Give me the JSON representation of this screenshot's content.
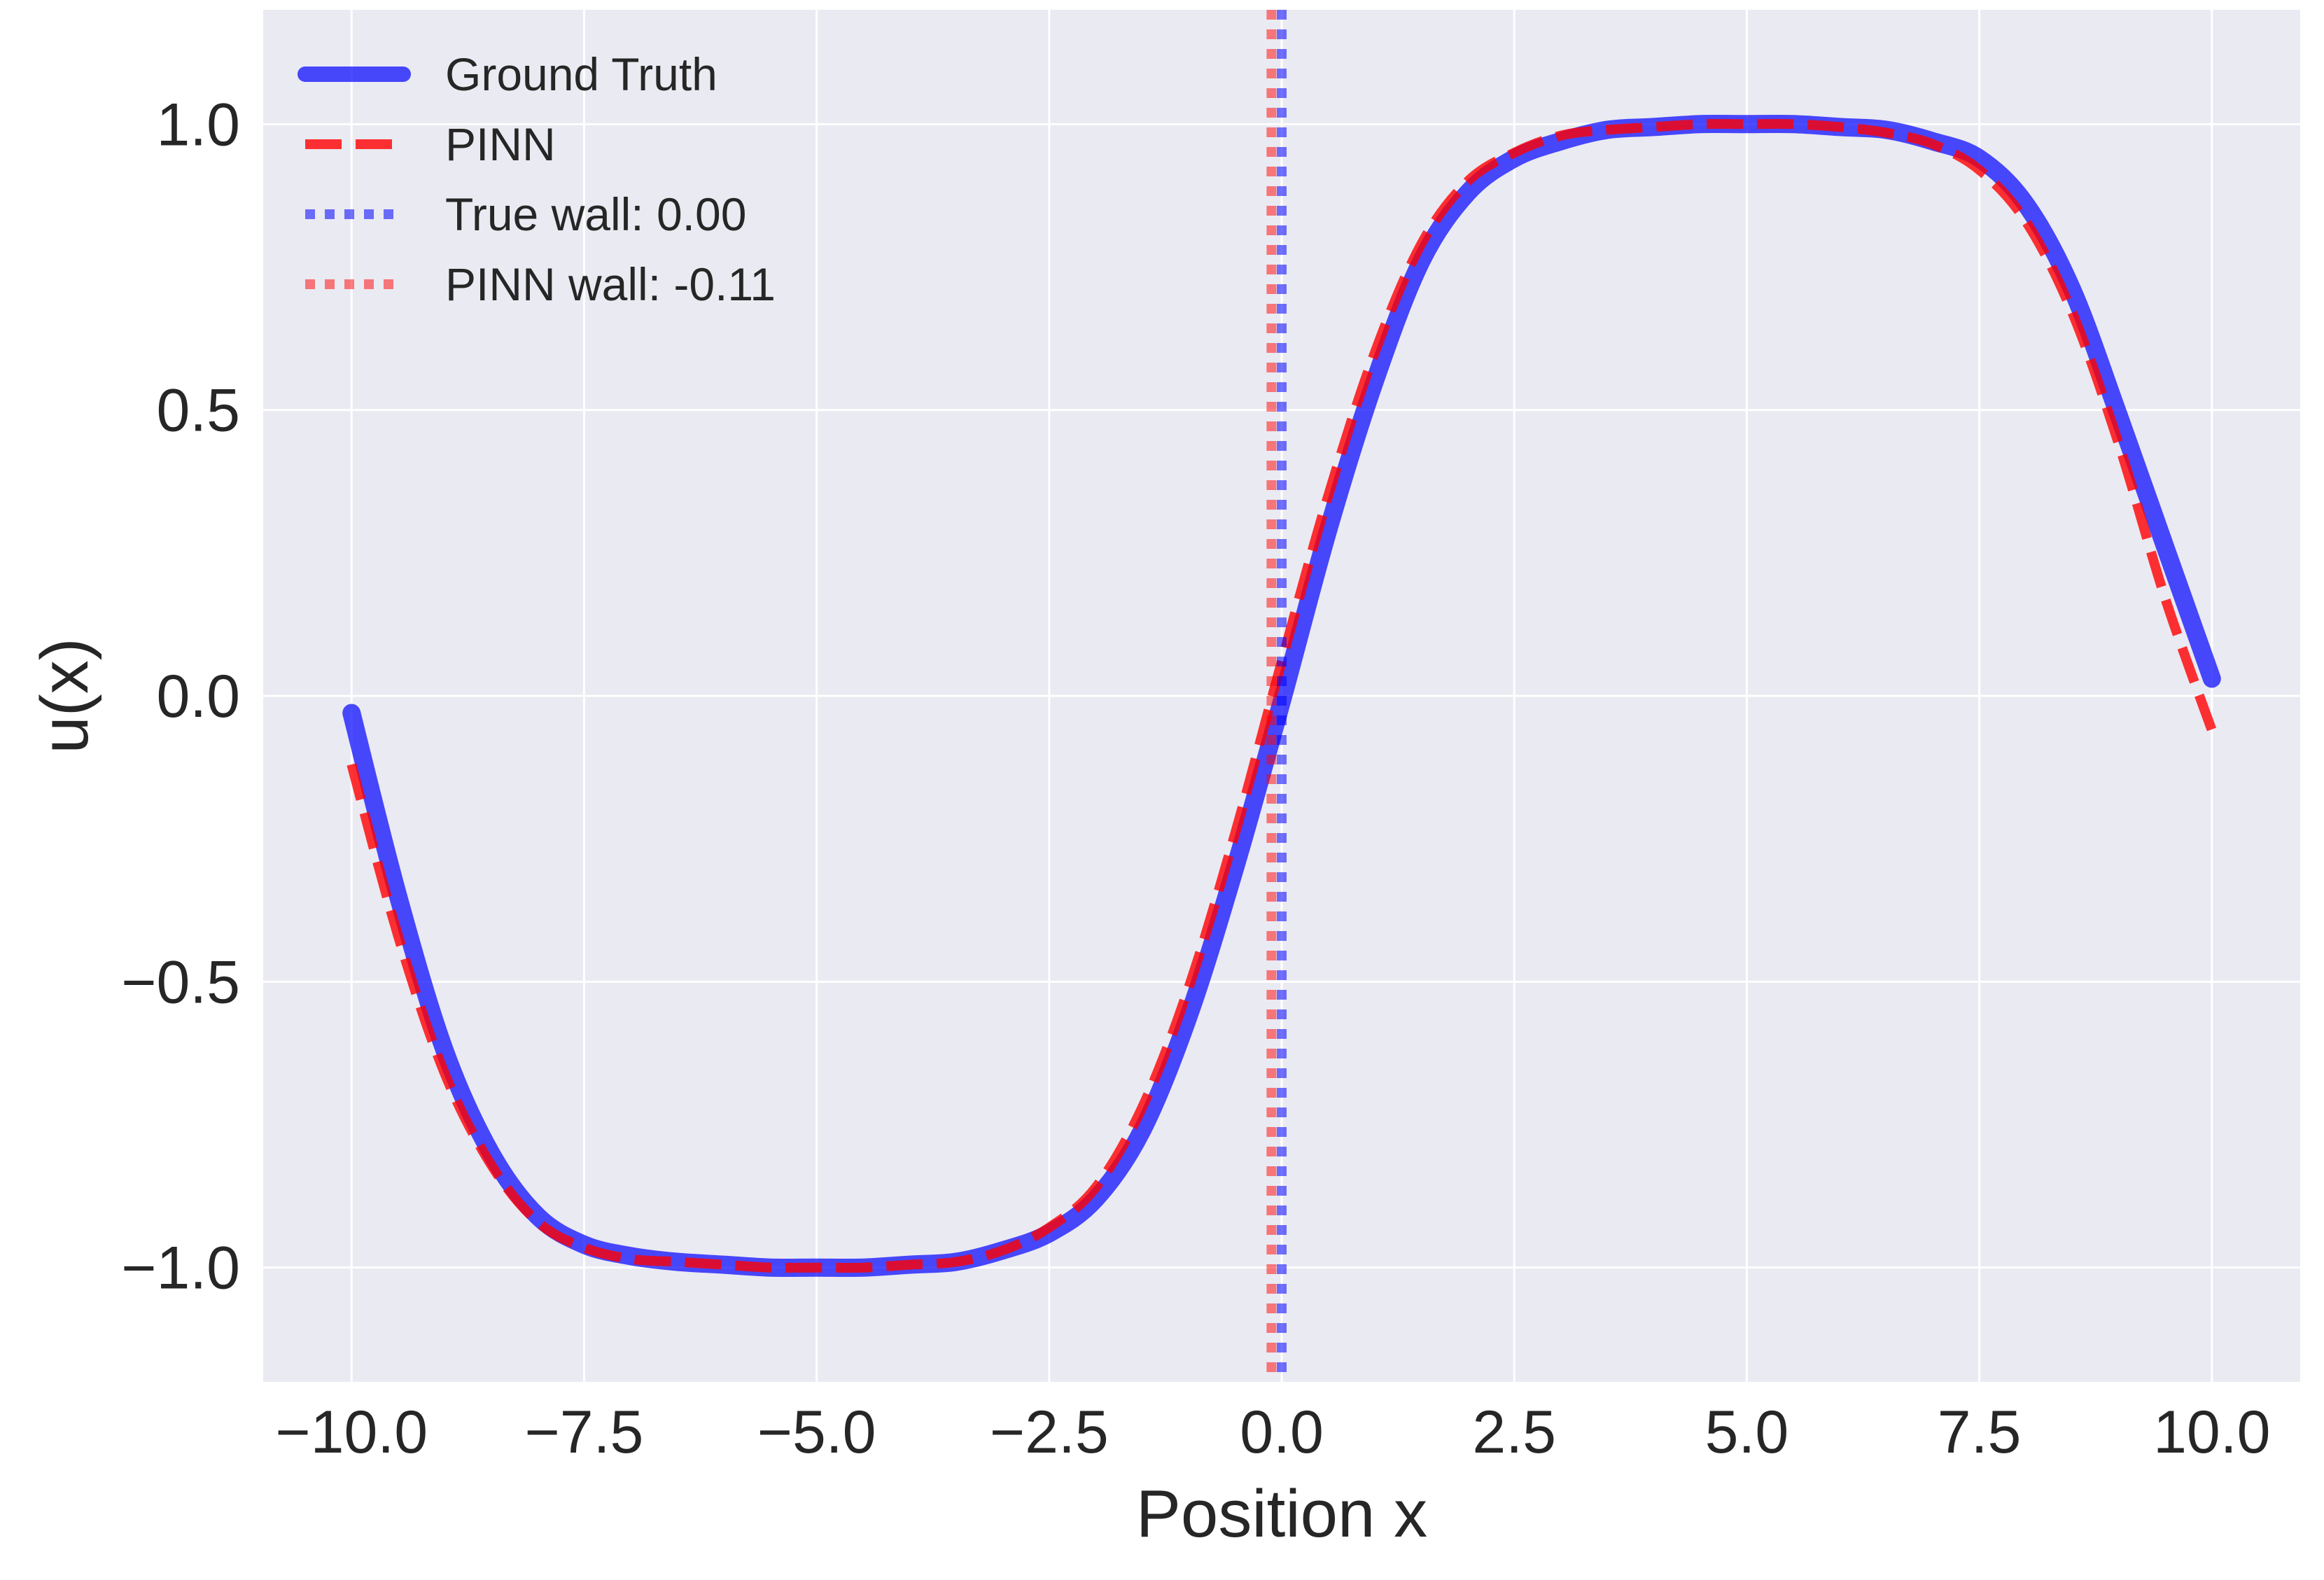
{
  "chart_data": {
    "type": "line",
    "xlabel": "Position x",
    "ylabel": "u(x)",
    "xlim": [
      -10.95,
      10.95
    ],
    "ylim": [
      -1.2,
      1.2
    ],
    "xticks": [
      -10.0,
      -7.5,
      -5.0,
      -2.5,
      0.0,
      2.5,
      5.0,
      7.5,
      10.0
    ],
    "xtick_labels": [
      "−10.0",
      "−7.5",
      "−5.0",
      "−2.5",
      "0.0",
      "2.5",
      "5.0",
      "7.5",
      "10.0"
    ],
    "yticks": [
      -1.0,
      -0.5,
      0.0,
      0.5,
      1.0
    ],
    "ytick_labels": [
      "−1.0",
      "−0.5",
      "0.0",
      "0.5",
      "1.0"
    ],
    "grid": true,
    "legend_position": "top-left",
    "series": [
      {
        "name": "Ground Truth",
        "style": "solid",
        "color": "#0000ff",
        "x": [
          -10.0,
          -9.5,
          -9.0,
          -8.5,
          -8.0,
          -7.5,
          -7.0,
          -6.5,
          -6.0,
          -5.5,
          -5.0,
          -4.5,
          -4.0,
          -3.5,
          -3.0,
          -2.5,
          -2.0,
          -1.5,
          -1.0,
          -0.5,
          0.0,
          0.5,
          1.0,
          1.5,
          2.0,
          2.5,
          3.0,
          3.5,
          4.0,
          4.5,
          5.0,
          5.5,
          6.0,
          6.5,
          7.0,
          7.5,
          8.0,
          8.5,
          9.0,
          9.5,
          10.0
        ],
        "y": [
          -0.03,
          -0.35,
          -0.62,
          -0.8,
          -0.91,
          -0.96,
          -0.98,
          -0.99,
          -0.995,
          -1.0,
          -1.0,
          -1.0,
          -0.995,
          -0.99,
          -0.97,
          -0.94,
          -0.88,
          -0.76,
          -0.56,
          -0.3,
          -0.01,
          0.29,
          0.55,
          0.76,
          0.88,
          0.94,
          0.97,
          0.99,
          0.995,
          1.0,
          1.0,
          1.0,
          0.995,
          0.99,
          0.97,
          0.94,
          0.86,
          0.71,
          0.49,
          0.26,
          0.03
        ]
      },
      {
        "name": "PINN",
        "style": "dashed",
        "color": "#ff0000",
        "x": [
          -10.0,
          -9.5,
          -9.0,
          -8.5,
          -8.0,
          -7.5,
          -7.0,
          -6.5,
          -6.0,
          -5.5,
          -5.0,
          -4.5,
          -4.0,
          -3.5,
          -3.0,
          -2.5,
          -2.0,
          -1.5,
          -1.0,
          -0.5,
          0.0,
          0.5,
          1.0,
          1.5,
          2.0,
          2.5,
          3.0,
          3.5,
          4.0,
          4.5,
          5.0,
          5.5,
          6.0,
          6.5,
          7.0,
          7.5,
          8.0,
          8.5,
          9.0,
          9.5,
          10.0
        ],
        "y": [
          -0.12,
          -0.42,
          -0.66,
          -0.82,
          -0.92,
          -0.965,
          -0.985,
          -0.99,
          -0.995,
          -1.0,
          -1.0,
          -1.0,
          -0.995,
          -0.99,
          -0.97,
          -0.93,
          -0.86,
          -0.72,
          -0.51,
          -0.24,
          0.06,
          0.35,
          0.6,
          0.79,
          0.9,
          0.95,
          0.98,
          0.99,
          0.995,
          1.0,
          1.0,
          1.0,
          0.995,
          0.985,
          0.965,
          0.92,
          0.83,
          0.67,
          0.44,
          0.17,
          -0.06
        ]
      }
    ],
    "vlines": [
      {
        "name": "True wall: 0.00",
        "x": 0.0,
        "color": "#0000ff",
        "style": "dotted"
      },
      {
        "name": "PINN wall: -0.11",
        "x": -0.11,
        "color": "#ff0000",
        "style": "dotted"
      }
    ],
    "colors": {
      "background": "#eaeaf2",
      "grid": "#ffffff",
      "text": "#262626"
    }
  }
}
